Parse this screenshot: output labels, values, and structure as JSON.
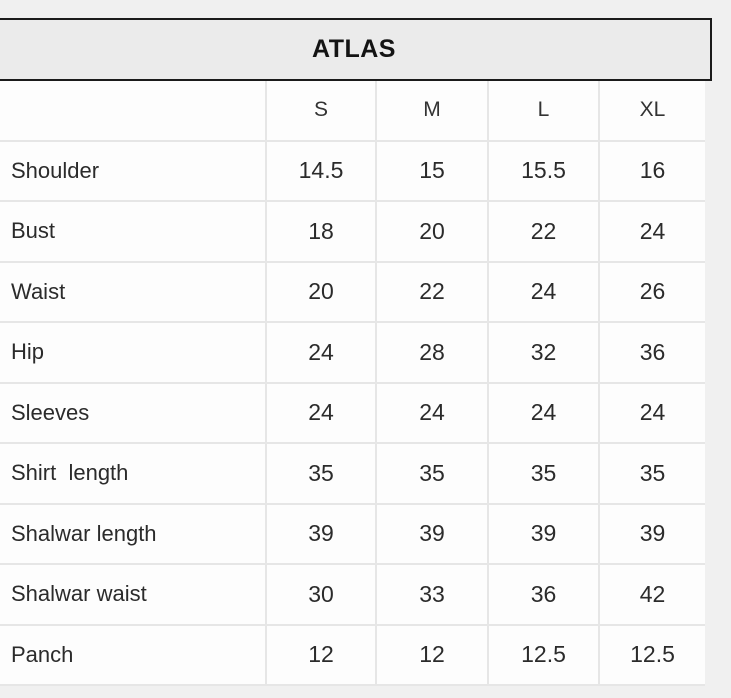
{
  "title": "ATLAS",
  "chart_data": {
    "type": "table",
    "title": "ATLAS",
    "columns": [
      "",
      "S",
      "M",
      "L",
      "XL"
    ],
    "rows": [
      {
        "label": "Shoulder",
        "values": [
          "14.5",
          "15",
          "15.5",
          "16"
        ]
      },
      {
        "label": "Bust",
        "values": [
          "18",
          "20",
          "22",
          "24"
        ]
      },
      {
        "label": "Waist",
        "values": [
          "20",
          "22",
          "24",
          "26"
        ]
      },
      {
        "label": "Hip",
        "values": [
          "24",
          "28",
          "32",
          "36"
        ]
      },
      {
        "label": "Sleeves",
        "values": [
          "24",
          "24",
          "24",
          "24"
        ]
      },
      {
        "label": "Shirt  length",
        "values": [
          "35",
          "35",
          "35",
          "35"
        ]
      },
      {
        "label": "Shalwar length",
        "values": [
          "39",
          "39",
          "39",
          "39"
        ]
      },
      {
        "label": "Shalwar waist",
        "values": [
          "30",
          "33",
          "36",
          "42"
        ]
      },
      {
        "label": "Panch",
        "values": [
          "12",
          "12",
          "12.5",
          "12.5"
        ]
      }
    ]
  },
  "colors": {
    "page_bg": "#f0f0f0",
    "title_box_bg": "#ebebeb",
    "title_box_border": "#1b1b1b",
    "cell_bg": "#fdfdfd",
    "grid_line": "#e6e6e6",
    "text": "#2b2b2b"
  }
}
